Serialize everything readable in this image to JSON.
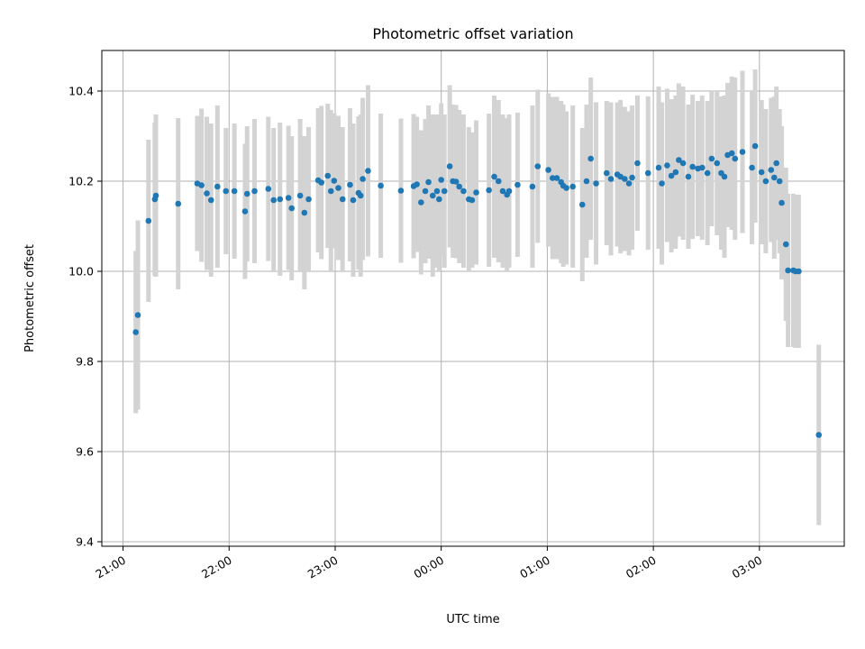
{
  "chart_data": {
    "type": "scatter",
    "title": "Photometric offset variation",
    "xlabel": "UTC time",
    "ylabel": "Photometric offset",
    "x_unit": "hours since 21:00 UTC",
    "xlim": [
      -0.2,
      6.8
    ],
    "ylim": [
      9.39,
      10.49
    ],
    "grid": true,
    "x_ticks": [
      {
        "label": "21:00",
        "value": 0
      },
      {
        "label": "22:00",
        "value": 1
      },
      {
        "label": "23:00",
        "value": 2
      },
      {
        "label": "00:00",
        "value": 3
      },
      {
        "label": "01:00",
        "value": 4
      },
      {
        "label": "02:00",
        "value": 5
      },
      {
        "label": "03:00",
        "value": 6
      }
    ],
    "y_ticks": [
      {
        "label": "9.4",
        "value": 9.4
      },
      {
        "label": "9.6",
        "value": 9.6
      },
      {
        "label": "9.8",
        "value": 9.8
      },
      {
        "label": "10.0",
        "value": 10.0
      },
      {
        "label": "10.2",
        "value": 10.2
      },
      {
        "label": "10.4",
        "value": 10.4
      }
    ],
    "marker_color": "#1f77b4",
    "errorbar_color": "#d3d3d3",
    "series": [
      {
        "x": [
          0.12,
          0.14,
          0.24,
          0.3,
          0.31,
          0.52,
          0.7,
          0.74,
          0.79,
          0.83,
          0.89,
          0.97,
          1.05,
          1.15,
          1.17,
          1.24,
          1.37,
          1.42,
          1.48,
          1.56,
          1.59,
          1.67,
          1.71,
          1.75,
          1.84,
          1.87,
          1.93,
          1.96,
          1.99,
          2.03,
          2.07,
          2.14,
          2.17,
          2.22,
          2.24,
          2.26,
          2.31,
          2.43,
          2.62,
          2.74,
          2.77,
          2.81,
          2.85,
          2.88,
          2.92,
          2.96,
          2.98,
          3.0,
          3.03,
          3.08,
          3.11,
          3.14,
          3.17,
          3.21,
          3.26,
          3.29,
          3.33,
          3.45,
          3.5,
          3.54,
          3.58,
          3.62,
          3.64,
          3.72,
          3.86,
          3.91,
          4.01,
          4.05,
          4.09,
          4.13,
          4.15,
          4.18,
          4.24,
          4.33,
          4.37,
          4.41,
          4.46,
          4.56,
          4.6,
          4.66,
          4.69,
          4.73,
          4.77,
          4.8,
          4.85,
          4.95,
          5.05,
          5.08,
          5.13,
          5.17,
          5.21,
          5.24,
          5.28,
          5.33,
          5.37,
          5.42,
          5.46,
          5.51,
          5.55,
          5.6,
          5.64,
          5.67,
          5.7,
          5.74,
          5.77,
          5.84,
          5.93,
          5.96,
          6.02,
          6.06,
          6.11,
          6.14,
          6.16,
          6.19,
          6.21,
          6.25,
          6.27,
          6.32,
          6.34,
          6.37,
          6.56
        ],
        "y": [
          9.865,
          9.903,
          10.112,
          10.16,
          10.168,
          10.15,
          10.195,
          10.191,
          10.173,
          10.158,
          10.188,
          10.178,
          10.178,
          10.133,
          10.172,
          10.178,
          10.183,
          10.158,
          10.16,
          10.163,
          10.14,
          10.168,
          10.13,
          10.16,
          10.202,
          10.197,
          10.212,
          10.178,
          10.201,
          10.185,
          10.16,
          10.192,
          10.158,
          10.174,
          10.168,
          10.205,
          10.223,
          10.19,
          10.179,
          10.189,
          10.193,
          10.153,
          10.178,
          10.198,
          10.168,
          10.178,
          10.16,
          10.203,
          10.178,
          10.233,
          10.2,
          10.199,
          10.188,
          10.178,
          10.16,
          10.158,
          10.175,
          10.18,
          10.21,
          10.2,
          10.178,
          10.17,
          10.178,
          10.192,
          10.188,
          10.233,
          10.225,
          10.207,
          10.207,
          10.198,
          10.19,
          10.185,
          10.188,
          10.148,
          10.2,
          10.25,
          10.195,
          10.218,
          10.205,
          10.215,
          10.21,
          10.205,
          10.195,
          10.208,
          10.24,
          10.218,
          10.23,
          10.195,
          10.235,
          10.212,
          10.22,
          10.247,
          10.24,
          10.21,
          10.232,
          10.228,
          10.23,
          10.218,
          10.25,
          10.24,
          10.218,
          10.21,
          10.258,
          10.262,
          10.25,
          10.265,
          10.23,
          10.278,
          10.22,
          10.2,
          10.225,
          10.208,
          10.24,
          10.2,
          10.152,
          10.06,
          10.002,
          10.002,
          10.0,
          10.0,
          9.637
        ],
        "yerr": [
          0.18,
          0.21,
          0.18,
          0.17,
          0.18,
          0.19,
          0.15,
          0.17,
          0.17,
          0.17,
          0.18,
          0.14,
          0.15,
          0.15,
          0.15,
          0.16,
          0.16,
          0.16,
          0.17,
          0.16,
          0.16,
          0.17,
          0.17,
          0.16,
          0.16,
          0.17,
          0.16,
          0.18,
          0.15,
          0.16,
          0.16,
          0.17,
          0.17,
          0.17,
          0.18,
          0.18,
          0.19,
          0.16,
          0.16,
          0.16,
          0.15,
          0.16,
          0.16,
          0.17,
          0.18,
          0.17,
          0.16,
          0.17,
          0.17,
          0.18,
          0.17,
          0.17,
          0.17,
          0.17,
          0.16,
          0.15,
          0.16,
          0.17,
          0.18,
          0.18,
          0.17,
          0.17,
          0.17,
          0.16,
          0.18,
          0.17,
          0.17,
          0.18,
          0.18,
          0.18,
          0.18,
          0.17,
          0.18,
          0.17,
          0.17,
          0.18,
          0.18,
          0.16,
          0.17,
          0.16,
          0.17,
          0.16,
          0.16,
          0.16,
          0.15,
          0.17,
          0.18,
          0.18,
          0.17,
          0.17,
          0.17,
          0.17,
          0.17,
          0.16,
          0.16,
          0.15,
          0.16,
          0.16,
          0.15,
          0.16,
          0.17,
          0.18,
          0.16,
          0.17,
          0.18,
          0.18,
          0.17,
          0.17,
          0.16,
          0.16,
          0.16,
          0.18,
          0.17,
          0.16,
          0.17,
          0.17,
          0.17,
          0.17,
          0.17,
          0.17,
          0.2
        ]
      }
    ]
  }
}
